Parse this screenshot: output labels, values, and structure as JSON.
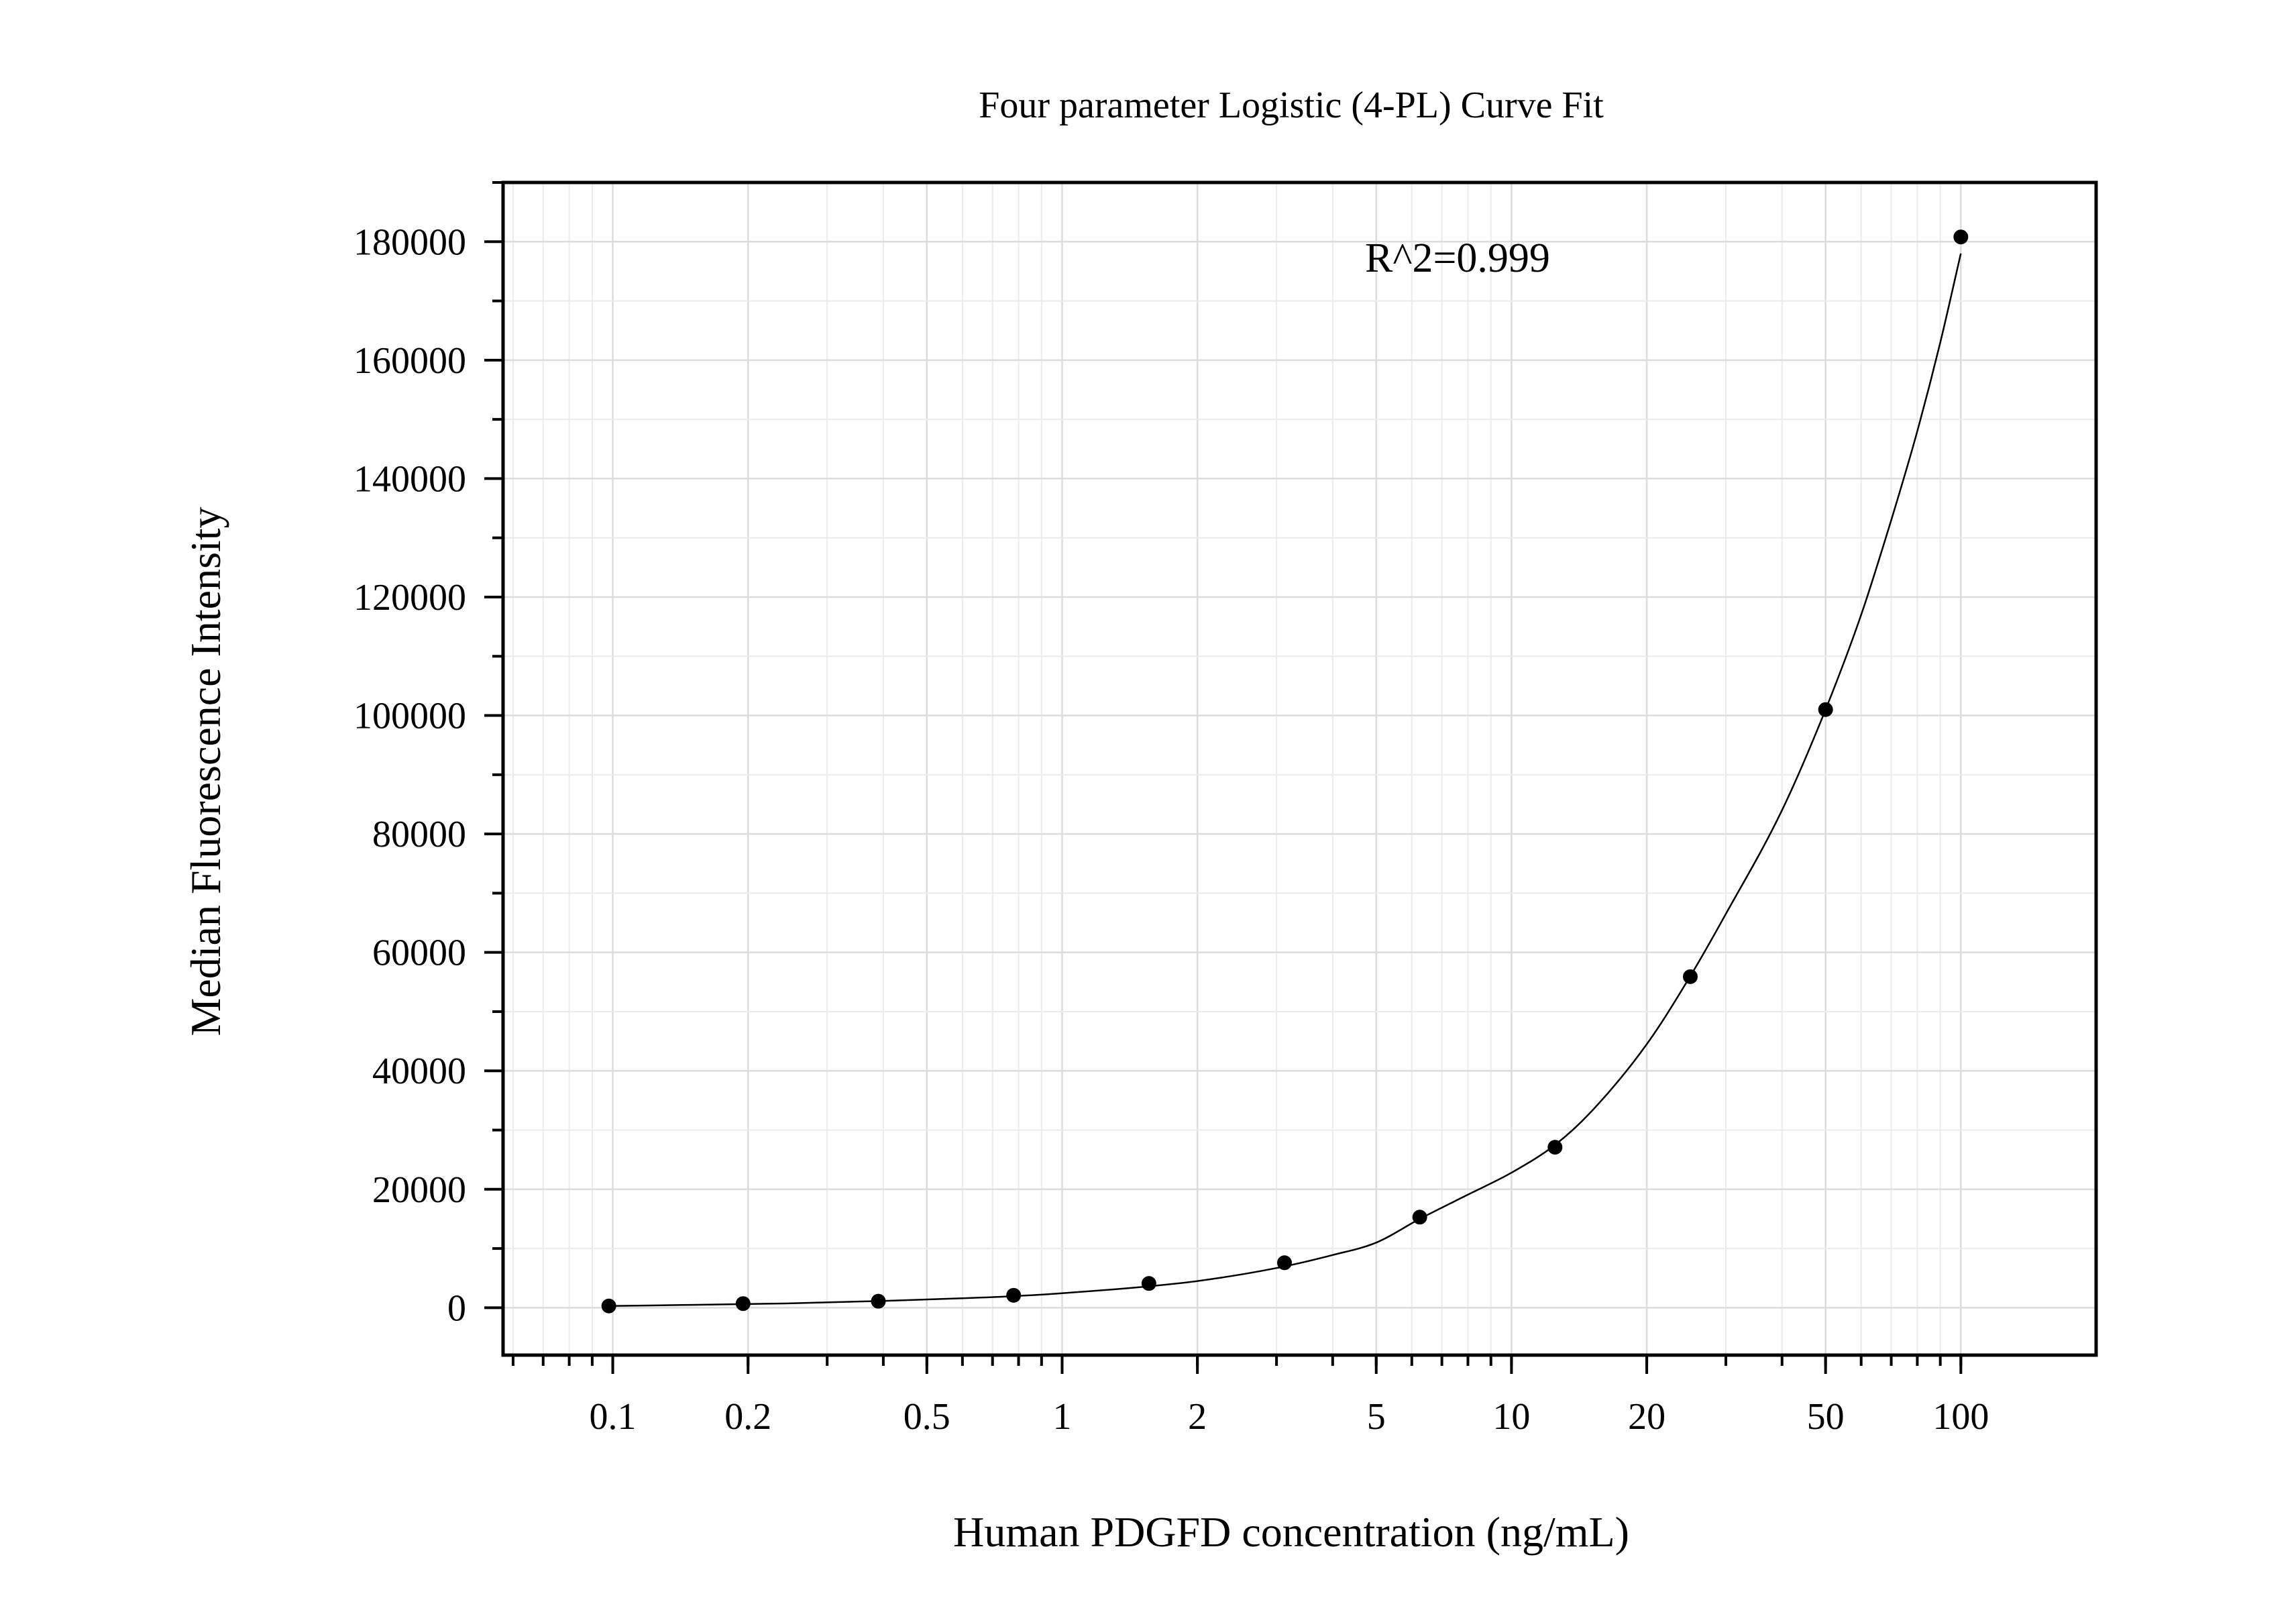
{
  "chart_data": {
    "type": "scatter",
    "title": "Four parameter Logistic (4-PL) Curve Fit",
    "xlabel": "Human PDGFD concentration (ng/mL)",
    "ylabel": "Median Fluorescence Intensity",
    "x_scale": "log",
    "y_scale": "linear",
    "xlim": [
      0.057,
      200
    ],
    "ylim": [
      -8000,
      190000
    ],
    "x_ticks": [
      0.1,
      0.2,
      0.5,
      1,
      2,
      5,
      10,
      20,
      50,
      100
    ],
    "x_tick_labels": [
      "0.1",
      "0.2",
      "0.5",
      "1",
      "2",
      "5",
      "10",
      "20",
      "50",
      "100"
    ],
    "y_ticks": [
      0,
      20000,
      40000,
      60000,
      80000,
      100000,
      120000,
      140000,
      160000,
      180000
    ],
    "y_tick_labels": [
      "0",
      "20000",
      "40000",
      "60000",
      "80000",
      "100000",
      "120000",
      "140000",
      "160000",
      "180000"
    ],
    "grid": true,
    "annotation": "R^2=0.999",
    "series": [
      {
        "x": [
          0.098,
          0.195,
          0.39,
          0.78,
          1.56,
          3.125,
          6.25,
          12.5,
          25,
          50,
          100
        ],
        "y": [
          300,
          700,
          1100,
          2100,
          4100,
          7600,
          15300,
          27100,
          55900,
          101000,
          180800
        ],
        "marker": "circle",
        "color": "#000000"
      }
    ],
    "fit_curve": {
      "model": "4-PL",
      "x": [
        0.098,
        0.15,
        0.25,
        0.4,
        0.6,
        0.8,
        1,
        1.5,
        2,
        3,
        4,
        5,
        6.25,
        8,
        10,
        12.5,
        15,
        20,
        25,
        30,
        40,
        50,
        60,
        70,
        80,
        90,
        100
      ],
      "y": [
        300,
        480,
        750,
        1150,
        1600,
        2000,
        2450,
        3500,
        4500,
        6700,
        8900,
        11000,
        15000,
        19100,
        22800,
        27500,
        33000,
        44500,
        56000,
        66500,
        84000,
        101000,
        117000,
        133000,
        148000,
        163000,
        178000
      ],
      "color": "#000000"
    }
  }
}
